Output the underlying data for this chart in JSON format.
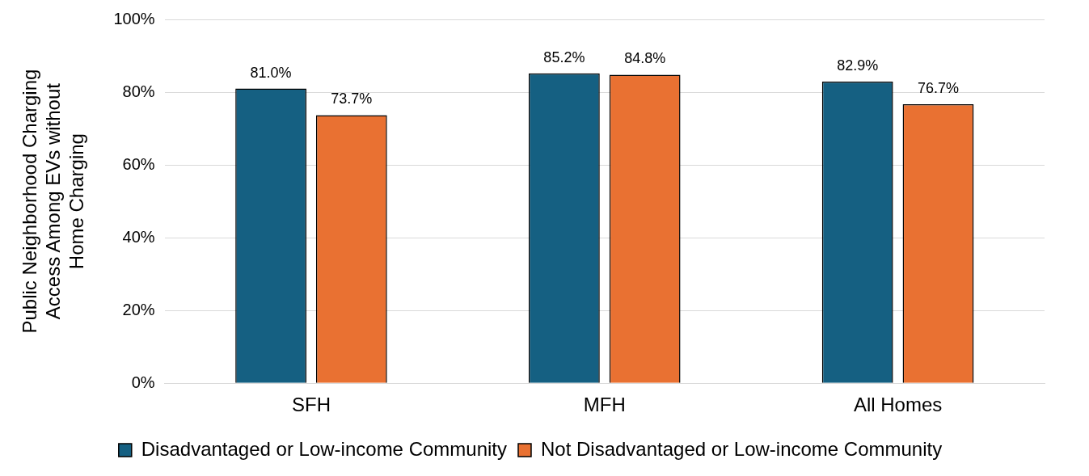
{
  "chart_data": {
    "type": "bar",
    "ylabel": "Public Neighborhood Charging Access Among EVs without Home Charging",
    "categories": [
      "SFH",
      "MFH",
      "All Homes"
    ],
    "series": [
      {
        "name": "Disadvantaged or Low-income Community",
        "color": "#156082",
        "values": [
          81.0,
          85.2,
          82.9
        ],
        "value_labels": [
          "81.0%",
          "85.2%",
          "82.9%"
        ]
      },
      {
        "name": "Not Disadvantaged or Low-income Community",
        "color": "#e97132",
        "values": [
          73.7,
          84.8,
          76.7
        ],
        "value_labels": [
          "73.7%",
          "84.8%",
          "76.7%"
        ]
      }
    ],
    "ylim": [
      0,
      100
    ],
    "yticks": [
      {
        "value": 0,
        "label": "0%"
      },
      {
        "value": 20,
        "label": "20%"
      },
      {
        "value": 40,
        "label": "40%"
      },
      {
        "value": 60,
        "label": "60%"
      },
      {
        "value": 80,
        "label": "80%"
      },
      {
        "value": 100,
        "label": "100%"
      }
    ],
    "grid": "y",
    "legend": "bottom"
  }
}
